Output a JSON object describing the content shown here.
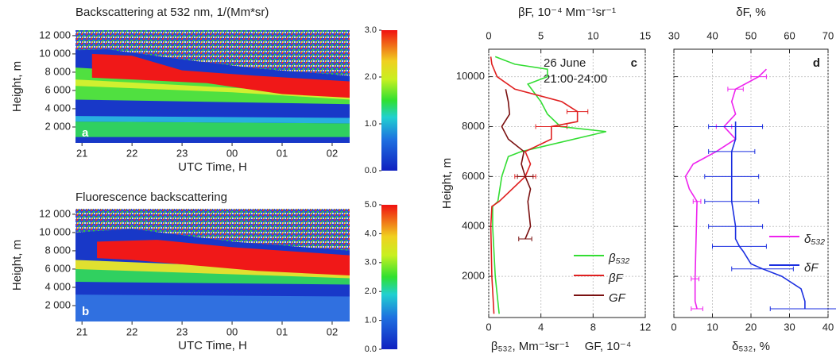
{
  "chart_data": [
    {
      "type": "heatmap",
      "panel_label": "a",
      "title": "Backscattering at 532 nm, 1/(Mm*sr)",
      "xlabel": "UTC Time, H",
      "ylabel": "Height, m",
      "xlim": [
        20.87,
        26.35
      ],
      "xticks": [
        21,
        22,
        23,
        {
          "value": 24,
          "label": "00"
        },
        {
          "value": 25,
          "label": "01"
        },
        {
          "value": 26,
          "label": "02"
        }
      ],
      "ylim": [
        260,
        12600
      ],
      "yticks": [
        {
          "value": 2000,
          "label": "2 000"
        },
        {
          "value": 4000,
          "label": "4 000"
        },
        {
          "value": 6000,
          "label": "6 000"
        },
        {
          "value": 8000,
          "label": "8 000"
        },
        {
          "value": 10000,
          "label": "10 000"
        },
        {
          "value": 12000,
          "label": "12 000"
        }
      ],
      "clim": [
        0,
        3
      ],
      "cticks": [
        {
          "value": 0,
          "label": "0.0"
        },
        {
          "value": 1,
          "label": "1.0"
        },
        {
          "value": 2,
          "label": "2.0"
        },
        {
          "value": 3,
          "label": "3.0"
        }
      ]
    },
    {
      "type": "heatmap",
      "panel_label": "b",
      "title": "Fluorescence backscattering",
      "xlabel": "UTC Time, H",
      "ylabel": "Height, m",
      "xlim": [
        20.87,
        26.35
      ],
      "xticks": [
        21,
        22,
        23,
        {
          "value": 24,
          "label": "00"
        },
        {
          "value": 25,
          "label": "01"
        },
        {
          "value": 26,
          "label": "02"
        }
      ],
      "ylim": [
        260,
        12600
      ],
      "yticks": [
        {
          "value": 2000,
          "label": "2 000"
        },
        {
          "value": 4000,
          "label": "4 000"
        },
        {
          "value": 6000,
          "label": "6 000"
        },
        {
          "value": 8000,
          "label": "8 000"
        },
        {
          "value": 10000,
          "label": "10 000"
        },
        {
          "value": 12000,
          "label": "12 000"
        }
      ],
      "clim": [
        0,
        5
      ],
      "cticks": [
        {
          "value": 0,
          "label": "0.0"
        },
        {
          "value": 1,
          "label": "1.0"
        },
        {
          "value": 2,
          "label": "2.0"
        },
        {
          "value": 3,
          "label": "3.0"
        },
        {
          "value": 4,
          "label": "4.0"
        },
        {
          "value": 5,
          "label": "5.0"
        }
      ]
    },
    {
      "type": "profile",
      "panel_label": "c",
      "annotations": [
        "26 June",
        "21:00-24:00"
      ],
      "ylabel": "Height, m",
      "xlabel": "β₅₃₂, Mm⁻¹sr⁻¹",
      "xlabel_extra": "GF, 10⁻⁴",
      "x2label": "βF, 10⁻⁴ Mm⁻¹sr⁻¹",
      "xlim": [
        0,
        12
      ],
      "xticks": [
        0,
        4,
        8,
        12
      ],
      "x2lim": [
        0,
        15
      ],
      "x2ticks": [
        0,
        5,
        10,
        15
      ],
      "ylim": [
        350,
        11100
      ],
      "yticks": [
        2000,
        4000,
        6000,
        8000,
        10000
      ],
      "grid": true,
      "series": [
        {
          "name": "β₅₃₂",
          "color": "#33dd33",
          "y": [
            500,
            2000,
            4000,
            4800,
            5000,
            6000,
            6800,
            7000,
            7800,
            8000,
            8500,
            9000,
            9700,
            10000,
            10300,
            10500,
            10800
          ],
          "values": [
            0.8,
            0.5,
            0.3,
            0.3,
            0.7,
            1.0,
            1.5,
            2.5,
            9,
            5.5,
            4.5,
            4,
            3,
            4.5,
            4.5,
            2,
            0.5
          ]
        },
        {
          "name": "βF",
          "color": "#e02020",
          "axis": "x2",
          "y": [
            500,
            2000,
            4000,
            4800,
            5000,
            6000,
            6500,
            7000,
            7500,
            8000,
            8200,
            8600,
            9000,
            9500,
            10000,
            10500,
            10800
          ],
          "values": [
            0.5,
            0.3,
            0.2,
            0.3,
            1,
            3.5,
            4,
            3.5,
            6,
            6,
            8.5,
            8.5,
            7,
            2.5,
            0.8,
            0.3,
            0.2
          ],
          "errors": [
            null,
            null,
            null,
            null,
            null,
            1,
            null,
            null,
            null,
            1.5,
            null,
            1,
            null,
            null,
            null,
            null,
            null
          ]
        },
        {
          "name": "GF",
          "color": "#7a1010",
          "y": [
            3500,
            4000,
            5000,
            5500,
            6000,
            6500,
            7000,
            7500,
            8000,
            8500,
            9000,
            9500
          ],
          "values": [
            2.8,
            3.2,
            3,
            3.2,
            2.8,
            2.5,
            2.7,
            1.5,
            1.0,
            1.6,
            1.5,
            1.3
          ],
          "errors": [
            0.5,
            null,
            null,
            null,
            0.6,
            null,
            null,
            null,
            null,
            null,
            null,
            null
          ]
        }
      ]
    },
    {
      "type": "profile",
      "panel_label": "d",
      "xlabel": "δ₅₃₂, %",
      "x2label": "δF, %",
      "xlim": [
        0,
        40
      ],
      "xticks": [
        0,
        10,
        20,
        30,
        40
      ],
      "x2lim": [
        30,
        70
      ],
      "x2ticks": [
        30,
        40,
        50,
        60,
        70
      ],
      "ylim": [
        350,
        11100
      ],
      "yticks": [
        2000,
        4000,
        6000,
        8000,
        10000
      ],
      "grid": true,
      "series": [
        {
          "name": "δ₅₃₂",
          "color": "#ee22ee",
          "y": [
            700,
            1000,
            1500,
            1900,
            5000,
            5500,
            6000,
            6500,
            7000,
            7500,
            8000,
            8500,
            9000,
            9500,
            10000,
            10300
          ],
          "values": [
            6,
            5.5,
            5.5,
            5.5,
            6,
            4,
            3,
            5,
            11,
            16,
            13,
            16,
            15,
            16,
            22,
            24
          ],
          "errors": [
            1.5,
            null,
            null,
            1,
            1,
            null,
            null,
            null,
            null,
            null,
            2,
            null,
            null,
            2,
            2,
            null
          ]
        },
        {
          "name": "δF",
          "color": "#1a2ee0",
          "axis": "x2",
          "y": [
            700,
            1000,
            1500,
            2000,
            2300,
            2500,
            3000,
            3200,
            3500,
            4000,
            5000,
            6000,
            7000,
            7500,
            8000,
            8200
          ],
          "values": [
            64,
            64,
            63,
            58,
            53,
            50,
            48,
            47,
            46,
            46,
            45,
            45,
            45,
            46,
            46,
            46
          ],
          "errors": [
            9,
            null,
            null,
            null,
            8,
            null,
            null,
            7,
            null,
            7,
            7,
            7,
            6,
            null,
            7,
            null
          ]
        }
      ]
    }
  ]
}
